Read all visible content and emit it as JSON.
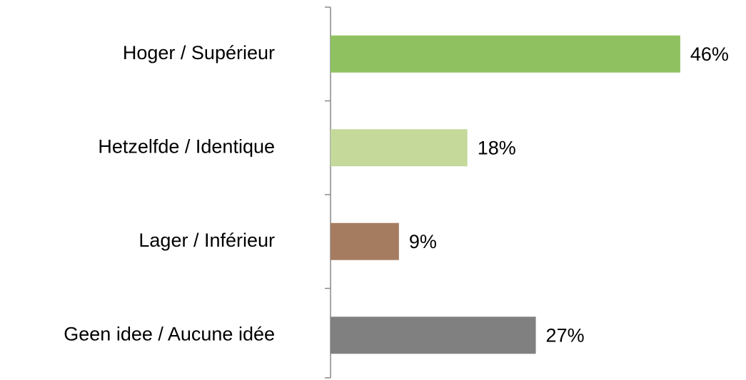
{
  "chart_data": {
    "type": "bar",
    "orientation": "horizontal",
    "categories": [
      "Hoger / Supérieur",
      "Hetzelfde / Identique",
      "Lager / Inférieur",
      "Geen idee / Aucune idée"
    ],
    "values": [
      46,
      18,
      9,
      27
    ],
    "value_labels": [
      "46%",
      "18%",
      "9%",
      "27%"
    ],
    "colors": [
      "#8fc160",
      "#c4d99a",
      "#a67c60",
      "#808080"
    ]
  }
}
